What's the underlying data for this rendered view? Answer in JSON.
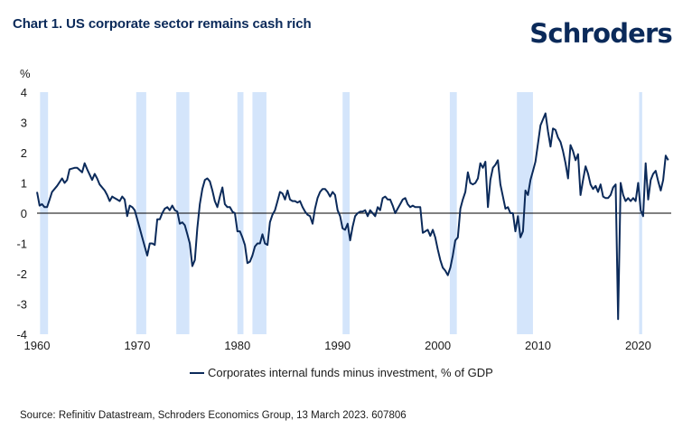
{
  "header": {
    "title": "Chart 1. US corporate sector remains cash rich",
    "brand": "Schroders"
  },
  "footer": {
    "source": "Source: Refinitiv Datastream, Schroders Economics Group, 13 March 2023. 607806"
  },
  "colors": {
    "line": "#0b2a5a",
    "recession_band": "#d4e5fb",
    "zero_line": "#000000",
    "title": "#0b2a5a"
  },
  "chart_data": {
    "type": "line",
    "title": "Chart 1. US corporate sector remains cash rich",
    "ylabel": "%",
    "xlabel": "",
    "xlim": [
      1960,
      2023.3
    ],
    "ylim": [
      -4,
      4
    ],
    "x_ticks": [
      1960,
      1970,
      1980,
      1990,
      2000,
      2010,
      2020
    ],
    "y_ticks": [
      4,
      3,
      2,
      1,
      0,
      -1,
      -2,
      -3,
      -4
    ],
    "grid": false,
    "legend_position": "bottom-center",
    "recession_bands": [
      [
        1960.3,
        1961.1
      ],
      [
        1969.9,
        1970.9
      ],
      [
        1973.9,
        1975.2
      ],
      [
        1980.0,
        1980.6
      ],
      [
        1981.5,
        1982.9
      ],
      [
        1990.5,
        1991.2
      ],
      [
        2001.2,
        2001.9
      ],
      [
        2007.9,
        2009.5
      ],
      [
        2020.1,
        2020.4
      ]
    ],
    "series": [
      {
        "name": "Corporates internal funds minus investment, % of GDP",
        "points": [
          [
            1960.0,
            0.7
          ],
          [
            1960.25,
            0.25
          ],
          [
            1960.5,
            0.3
          ],
          [
            1960.75,
            0.2
          ],
          [
            1961.0,
            0.2
          ],
          [
            1961.25,
            0.45
          ],
          [
            1961.5,
            0.7
          ],
          [
            1962.0,
            0.9
          ],
          [
            1962.5,
            1.15
          ],
          [
            1962.75,
            1.0
          ],
          [
            1963.0,
            1.1
          ],
          [
            1963.25,
            1.45
          ],
          [
            1963.75,
            1.5
          ],
          [
            1964.0,
            1.5
          ],
          [
            1964.5,
            1.35
          ],
          [
            1964.75,
            1.65
          ],
          [
            1965.0,
            1.45
          ],
          [
            1965.5,
            1.1
          ],
          [
            1965.75,
            1.3
          ],
          [
            1966.0,
            1.15
          ],
          [
            1966.25,
            0.95
          ],
          [
            1966.75,
            0.75
          ],
          [
            1967.0,
            0.6
          ],
          [
            1967.25,
            0.4
          ],
          [
            1967.5,
            0.55
          ],
          [
            1967.75,
            0.5
          ],
          [
            1968.0,
            0.45
          ],
          [
            1968.25,
            0.4
          ],
          [
            1968.5,
            0.55
          ],
          [
            1968.75,
            0.45
          ],
          [
            1969.0,
            -0.1
          ],
          [
            1969.25,
            0.25
          ],
          [
            1969.5,
            0.2
          ],
          [
            1969.75,
            0.1
          ],
          [
            1970.0,
            -0.2
          ],
          [
            1970.25,
            -0.5
          ],
          [
            1970.5,
            -0.8
          ],
          [
            1970.75,
            -1.1
          ],
          [
            1971.0,
            -1.4
          ],
          [
            1971.25,
            -1.0
          ],
          [
            1971.5,
            -1.0
          ],
          [
            1971.75,
            -1.05
          ],
          [
            1972.0,
            -0.2
          ],
          [
            1972.25,
            -0.2
          ],
          [
            1972.5,
            0.0
          ],
          [
            1972.75,
            0.15
          ],
          [
            1973.0,
            0.2
          ],
          [
            1973.25,
            0.1
          ],
          [
            1973.5,
            0.25
          ],
          [
            1973.75,
            0.1
          ],
          [
            1974.0,
            0.05
          ],
          [
            1974.25,
            -0.35
          ],
          [
            1974.5,
            -0.3
          ],
          [
            1974.75,
            -0.4
          ],
          [
            1975.0,
            -0.7
          ],
          [
            1975.25,
            -1.0
          ],
          [
            1975.5,
            -1.75
          ],
          [
            1975.75,
            -1.55
          ],
          [
            1976.0,
            -0.5
          ],
          [
            1976.25,
            0.3
          ],
          [
            1976.5,
            0.8
          ],
          [
            1976.75,
            1.1
          ],
          [
            1977.0,
            1.15
          ],
          [
            1977.25,
            1.05
          ],
          [
            1977.5,
            0.75
          ],
          [
            1977.75,
            0.4
          ],
          [
            1978.0,
            0.2
          ],
          [
            1978.25,
            0.55
          ],
          [
            1978.5,
            0.85
          ],
          [
            1978.75,
            0.3
          ],
          [
            1979.0,
            0.2
          ],
          [
            1979.25,
            0.2
          ],
          [
            1979.5,
            0.05
          ],
          [
            1979.75,
            0.0
          ],
          [
            1980.0,
            -0.6
          ],
          [
            1980.25,
            -0.6
          ],
          [
            1980.5,
            -0.8
          ],
          [
            1980.75,
            -1.05
          ],
          [
            1981.0,
            -1.65
          ],
          [
            1981.25,
            -1.6
          ],
          [
            1981.5,
            -1.4
          ],
          [
            1981.75,
            -1.1
          ],
          [
            1982.0,
            -1.0
          ],
          [
            1982.25,
            -1.0
          ],
          [
            1982.5,
            -0.7
          ],
          [
            1982.75,
            -1.0
          ],
          [
            1983.0,
            -1.05
          ],
          [
            1983.25,
            -0.3
          ],
          [
            1983.5,
            -0.05
          ],
          [
            1983.75,
            0.1
          ],
          [
            1984.0,
            0.4
          ],
          [
            1984.25,
            0.7
          ],
          [
            1984.5,
            0.65
          ],
          [
            1984.75,
            0.45
          ],
          [
            1985.0,
            0.75
          ],
          [
            1985.25,
            0.45
          ],
          [
            1985.5,
            0.4
          ],
          [
            1985.75,
            0.4
          ],
          [
            1986.0,
            0.35
          ],
          [
            1986.25,
            0.4
          ],
          [
            1986.5,
            0.2
          ],
          [
            1986.75,
            0.05
          ],
          [
            1987.0,
            -0.05
          ],
          [
            1987.25,
            -0.1
          ],
          [
            1987.5,
            -0.35
          ],
          [
            1987.75,
            0.15
          ],
          [
            1988.0,
            0.5
          ],
          [
            1988.25,
            0.7
          ],
          [
            1988.5,
            0.8
          ],
          [
            1988.75,
            0.8
          ],
          [
            1989.0,
            0.7
          ],
          [
            1989.25,
            0.55
          ],
          [
            1989.5,
            0.7
          ],
          [
            1989.75,
            0.6
          ],
          [
            1990.0,
            0.1
          ],
          [
            1990.25,
            -0.1
          ],
          [
            1990.5,
            -0.5
          ],
          [
            1990.75,
            -0.55
          ],
          [
            1991.0,
            -0.35
          ],
          [
            1991.25,
            -0.9
          ],
          [
            1991.5,
            -0.45
          ],
          [
            1991.75,
            -0.1
          ],
          [
            1992.0,
            0.0
          ],
          [
            1992.25,
            0.05
          ],
          [
            1992.5,
            0.05
          ],
          [
            1992.75,
            0.1
          ],
          [
            1993.0,
            -0.1
          ],
          [
            1993.25,
            0.1
          ],
          [
            1993.5,
            0.0
          ],
          [
            1993.75,
            -0.1
          ],
          [
            1994.0,
            0.2
          ],
          [
            1994.25,
            0.1
          ],
          [
            1994.5,
            0.5
          ],
          [
            1994.75,
            0.55
          ],
          [
            1995.0,
            0.45
          ],
          [
            1995.25,
            0.45
          ],
          [
            1995.5,
            0.25
          ],
          [
            1995.75,
            0.0
          ],
          [
            1996.0,
            0.15
          ],
          [
            1996.25,
            0.3
          ],
          [
            1996.5,
            0.45
          ],
          [
            1996.75,
            0.5
          ],
          [
            1997.0,
            0.3
          ],
          [
            1997.25,
            0.2
          ],
          [
            1997.5,
            0.25
          ],
          [
            1997.75,
            0.2
          ],
          [
            1998.0,
            0.2
          ],
          [
            1998.25,
            0.2
          ],
          [
            1998.5,
            -0.65
          ],
          [
            1998.75,
            -0.6
          ],
          [
            1999.0,
            -0.55
          ],
          [
            1999.25,
            -0.75
          ],
          [
            1999.5,
            -0.55
          ],
          [
            1999.75,
            -0.8
          ],
          [
            2000.0,
            -1.2
          ],
          [
            2000.25,
            -1.55
          ],
          [
            2000.5,
            -1.8
          ],
          [
            2000.75,
            -1.9
          ],
          [
            2001.0,
            -2.05
          ],
          [
            2001.25,
            -1.8
          ],
          [
            2001.5,
            -1.4
          ],
          [
            2001.75,
            -0.9
          ],
          [
            2002.0,
            -0.8
          ],
          [
            2002.25,
            0.15
          ],
          [
            2002.5,
            0.45
          ],
          [
            2002.75,
            0.7
          ],
          [
            2003.0,
            1.35
          ],
          [
            2003.25,
            1.0
          ],
          [
            2003.5,
            0.95
          ],
          [
            2003.75,
            1.0
          ],
          [
            2004.0,
            1.15
          ],
          [
            2004.25,
            1.65
          ],
          [
            2004.5,
            1.5
          ],
          [
            2004.75,
            1.7
          ],
          [
            2005.0,
            0.2
          ],
          [
            2005.25,
            1.1
          ],
          [
            2005.5,
            1.5
          ],
          [
            2005.75,
            1.6
          ],
          [
            2006.0,
            1.75
          ],
          [
            2006.25,
            0.95
          ],
          [
            2006.5,
            0.55
          ],
          [
            2006.75,
            0.15
          ],
          [
            2007.0,
            0.2
          ],
          [
            2007.25,
            0.0
          ],
          [
            2007.5,
            0.0
          ],
          [
            2007.75,
            -0.6
          ],
          [
            2008.0,
            -0.1
          ],
          [
            2008.25,
            -0.8
          ],
          [
            2008.5,
            -0.6
          ],
          [
            2008.75,
            0.75
          ],
          [
            2009.0,
            0.6
          ],
          [
            2009.25,
            1.1
          ],
          [
            2009.5,
            1.4
          ],
          [
            2009.75,
            1.7
          ],
          [
            2010.0,
            2.3
          ],
          [
            2010.25,
            2.9
          ],
          [
            2010.5,
            3.1
          ],
          [
            2010.75,
            3.3
          ],
          [
            2011.0,
            2.7
          ],
          [
            2011.25,
            2.2
          ],
          [
            2011.5,
            2.8
          ],
          [
            2011.75,
            2.75
          ],
          [
            2012.0,
            2.5
          ],
          [
            2012.25,
            2.35
          ],
          [
            2012.5,
            2.05
          ],
          [
            2012.75,
            1.65
          ],
          [
            2013.0,
            1.15
          ],
          [
            2013.25,
            2.25
          ],
          [
            2013.5,
            2.05
          ],
          [
            2013.75,
            1.75
          ],
          [
            2014.0,
            1.95
          ],
          [
            2014.25,
            0.6
          ],
          [
            2014.5,
            1.1
          ],
          [
            2014.75,
            1.55
          ],
          [
            2015.0,
            1.3
          ],
          [
            2015.25,
            0.95
          ],
          [
            2015.5,
            0.8
          ],
          [
            2015.75,
            0.9
          ],
          [
            2016.0,
            0.7
          ],
          [
            2016.25,
            0.95
          ],
          [
            2016.5,
            0.55
          ],
          [
            2016.75,
            0.5
          ],
          [
            2017.0,
            0.5
          ],
          [
            2017.25,
            0.6
          ],
          [
            2017.5,
            0.85
          ],
          [
            2017.75,
            0.95
          ],
          [
            2018.0,
            -3.5
          ],
          [
            2018.25,
            1.0
          ],
          [
            2018.5,
            0.6
          ],
          [
            2018.75,
            0.4
          ],
          [
            2019.0,
            0.5
          ],
          [
            2019.25,
            0.4
          ],
          [
            2019.5,
            0.5
          ],
          [
            2019.75,
            0.4
          ],
          [
            2020.0,
            1.0
          ],
          [
            2020.25,
            0.1
          ],
          [
            2020.5,
            -0.1
          ],
          [
            2020.75,
            1.65
          ],
          [
            2021.0,
            0.45
          ],
          [
            2021.25,
            1.1
          ],
          [
            2021.5,
            1.3
          ],
          [
            2021.75,
            1.4
          ],
          [
            2022.0,
            1.05
          ],
          [
            2022.25,
            0.75
          ],
          [
            2022.5,
            1.1
          ],
          [
            2022.75,
            1.9
          ],
          [
            2023.0,
            1.75
          ]
        ]
      }
    ]
  }
}
